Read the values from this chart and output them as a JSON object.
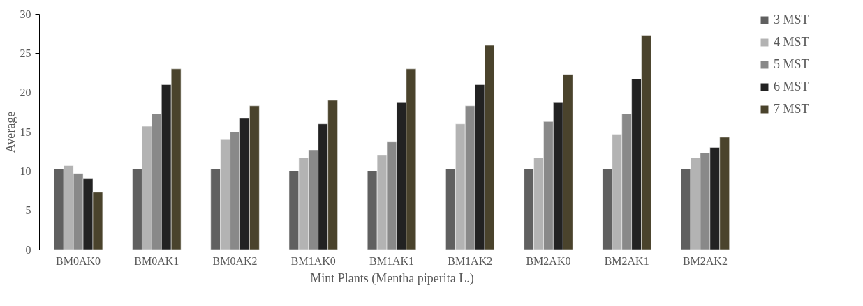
{
  "chart_data": {
    "type": "bar",
    "xlabel": "Mint Plants (Mentha piperita L.)",
    "ylabel": "Average",
    "categories": [
      "BM0AK0",
      "BM0AK1",
      "BM0AK2",
      "BM1AK0",
      "BM1AK1",
      "BM1AK2",
      "BM2AK0",
      "BM2AK1",
      "BM2AK2"
    ],
    "series": [
      {
        "name": "3 MST",
        "color": "#606060",
        "values": [
          10.3,
          10.3,
          10.3,
          10,
          10,
          10.3,
          10.3,
          10.3,
          10.3
        ]
      },
      {
        "name": "4 MST",
        "color": "#b3b3b3",
        "values": [
          10.7,
          15.7,
          14,
          11.7,
          12,
          16,
          11.7,
          14.7,
          11.7
        ]
      },
      {
        "name": "5 MST",
        "color": "#898989",
        "values": [
          9.7,
          17.3,
          15,
          12.7,
          13.7,
          18.3,
          16.3,
          17.3,
          12.3
        ]
      },
      {
        "name": "6 MST",
        "color": "#222222",
        "values": [
          9,
          21,
          16.7,
          16,
          18.7,
          21,
          18.7,
          21.7,
          13
        ]
      },
      {
        "name": "7 MST",
        "color": "#4a432c",
        "values": [
          7.3,
          23,
          18.3,
          19,
          23,
          26,
          22.3,
          27.3,
          14.3
        ]
      }
    ],
    "ylim": [
      0,
      30
    ],
    "yticks": [
      0,
      5,
      10,
      15,
      20,
      25,
      30
    ],
    "grid": false,
    "legend": "right"
  }
}
